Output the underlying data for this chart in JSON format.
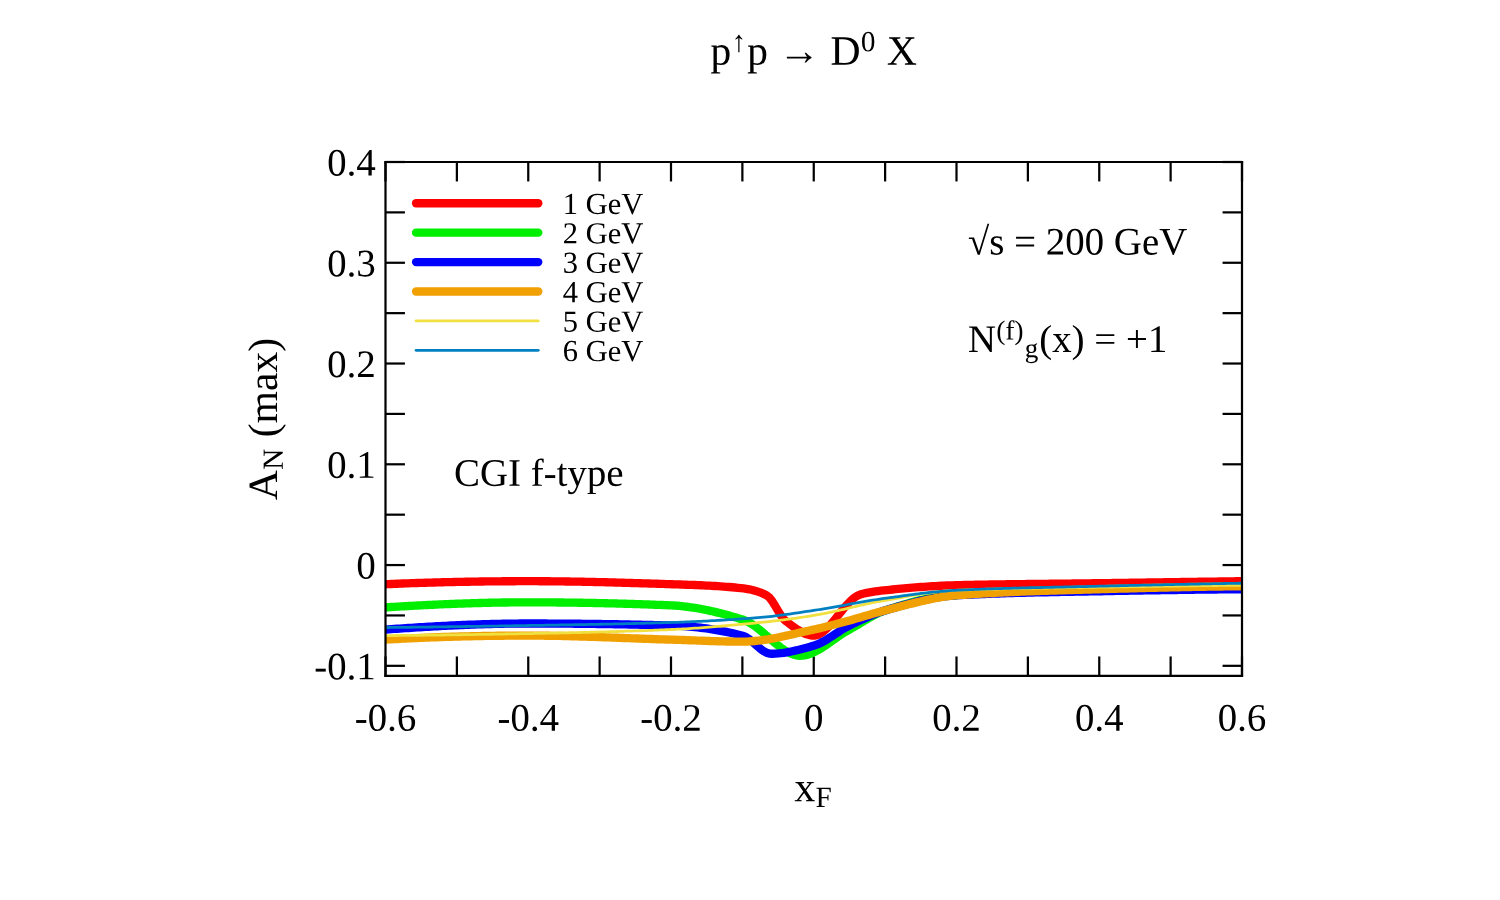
{
  "chart_data": {
    "type": "line",
    "title": "p$^{↑}$p → D$^{0}$ X",
    "xlabel": "x$_{F}$",
    "ylabel": "A$_{N}$ (max)",
    "annotations": [
      "√s = 200 GeV",
      "N$^{(f)}$$_{g}$(x) = +1",
      "CGI f-type"
    ],
    "xlim": [
      -0.6,
      0.6
    ],
    "ylim": [
      -0.11,
      0.4
    ],
    "xticks": [
      {
        "value": -0.6,
        "label": "-0.6"
      },
      {
        "value": -0.5,
        "label": null
      },
      {
        "value": -0.4,
        "label": "-0.4"
      },
      {
        "value": -0.3,
        "label": null
      },
      {
        "value": -0.2,
        "label": "-0.2"
      },
      {
        "value": -0.1,
        "label": null
      },
      0,
      {
        "value": 0.1,
        "label": null
      },
      0.2,
      {
        "value": 0.3,
        "label": null
      },
      0.4,
      {
        "value": 0.5,
        "label": null
      },
      0.6
    ],
    "yticks": [
      {
        "value": -0.1,
        "label": "-0.1"
      },
      {
        "value": -0.05,
        "label": null
      },
      0,
      {
        "value": 0.05,
        "label": null
      },
      0.1,
      {
        "value": 0.15,
        "label": null
      },
      0.2,
      {
        "value": 0.25,
        "label": null
      },
      0.3,
      {
        "value": 0.35,
        "label": null
      },
      0.4
    ],
    "grid": false,
    "legend": "top left",
    "marker": "none",
    "line_style": "solid",
    "series": [
      {
        "name": "1 GeV",
        "color": "#ff0000",
        "x": [
          -0.6,
          -0.4,
          -0.2,
          -0.1,
          -0.066,
          -0.04,
          0,
          0.066,
          0.1,
          0.2,
          0.4,
          0.6
        ],
        "values": [
          -0.019,
          -0.016,
          -0.019,
          -0.023,
          -0.03,
          -0.055,
          -0.07,
          -0.029,
          -0.025,
          -0.02,
          -0.018,
          -0.016
        ]
      },
      {
        "name": "2 GeV",
        "color": "#00ee00",
        "x": [
          -0.6,
          -0.4,
          -0.2,
          -0.1,
          -0.019,
          0.05,
          0.1,
          0.2
        ],
        "values": [
          -0.042,
          -0.037,
          -0.04,
          -0.054,
          -0.09,
          -0.064,
          -0.045,
          -0.03
        ]
      },
      {
        "name": "3 GeV",
        "color": "#0000ff",
        "x": [
          -0.6,
          -0.4,
          -0.2,
          -0.1,
          -0.06,
          0,
          0.05,
          0.1,
          0.2,
          0.4,
          0.6
        ],
        "values": [
          -0.064,
          -0.058,
          -0.06,
          -0.07,
          -0.088,
          -0.08,
          -0.06,
          -0.045,
          -0.03,
          -0.026,
          -0.024
        ]
      },
      {
        "name": "4 GeV",
        "color": "#f0a000",
        "x": [
          -0.6,
          -0.4,
          -0.2,
          -0.1,
          0,
          0.05,
          0.1,
          0.2,
          0.4,
          0.6
        ],
        "values": [
          -0.074,
          -0.07,
          -0.074,
          -0.076,
          -0.064,
          -0.055,
          -0.045,
          -0.03,
          -0.024,
          -0.021
        ]
      },
      {
        "name": "5 GeV",
        "color": "#f0e040",
        "x": [
          -0.6,
          -0.4,
          -0.2,
          -0.075,
          0,
          0.1,
          0.2,
          0.4,
          0.6
        ],
        "values": [
          -0.07,
          -0.068,
          -0.064,
          -0.057,
          -0.05,
          -0.035,
          -0.025,
          -0.022,
          -0.02
        ]
      },
      {
        "name": "6 GeV",
        "color": "#0080c0",
        "x": [
          -0.6,
          -0.4,
          -0.2,
          -0.075,
          0,
          0.1,
          0.2,
          0.4,
          0.6
        ],
        "values": [
          -0.062,
          -0.06,
          -0.057,
          -0.052,
          -0.045,
          -0.033,
          -0.025,
          -0.021,
          -0.018
        ]
      }
    ]
  }
}
